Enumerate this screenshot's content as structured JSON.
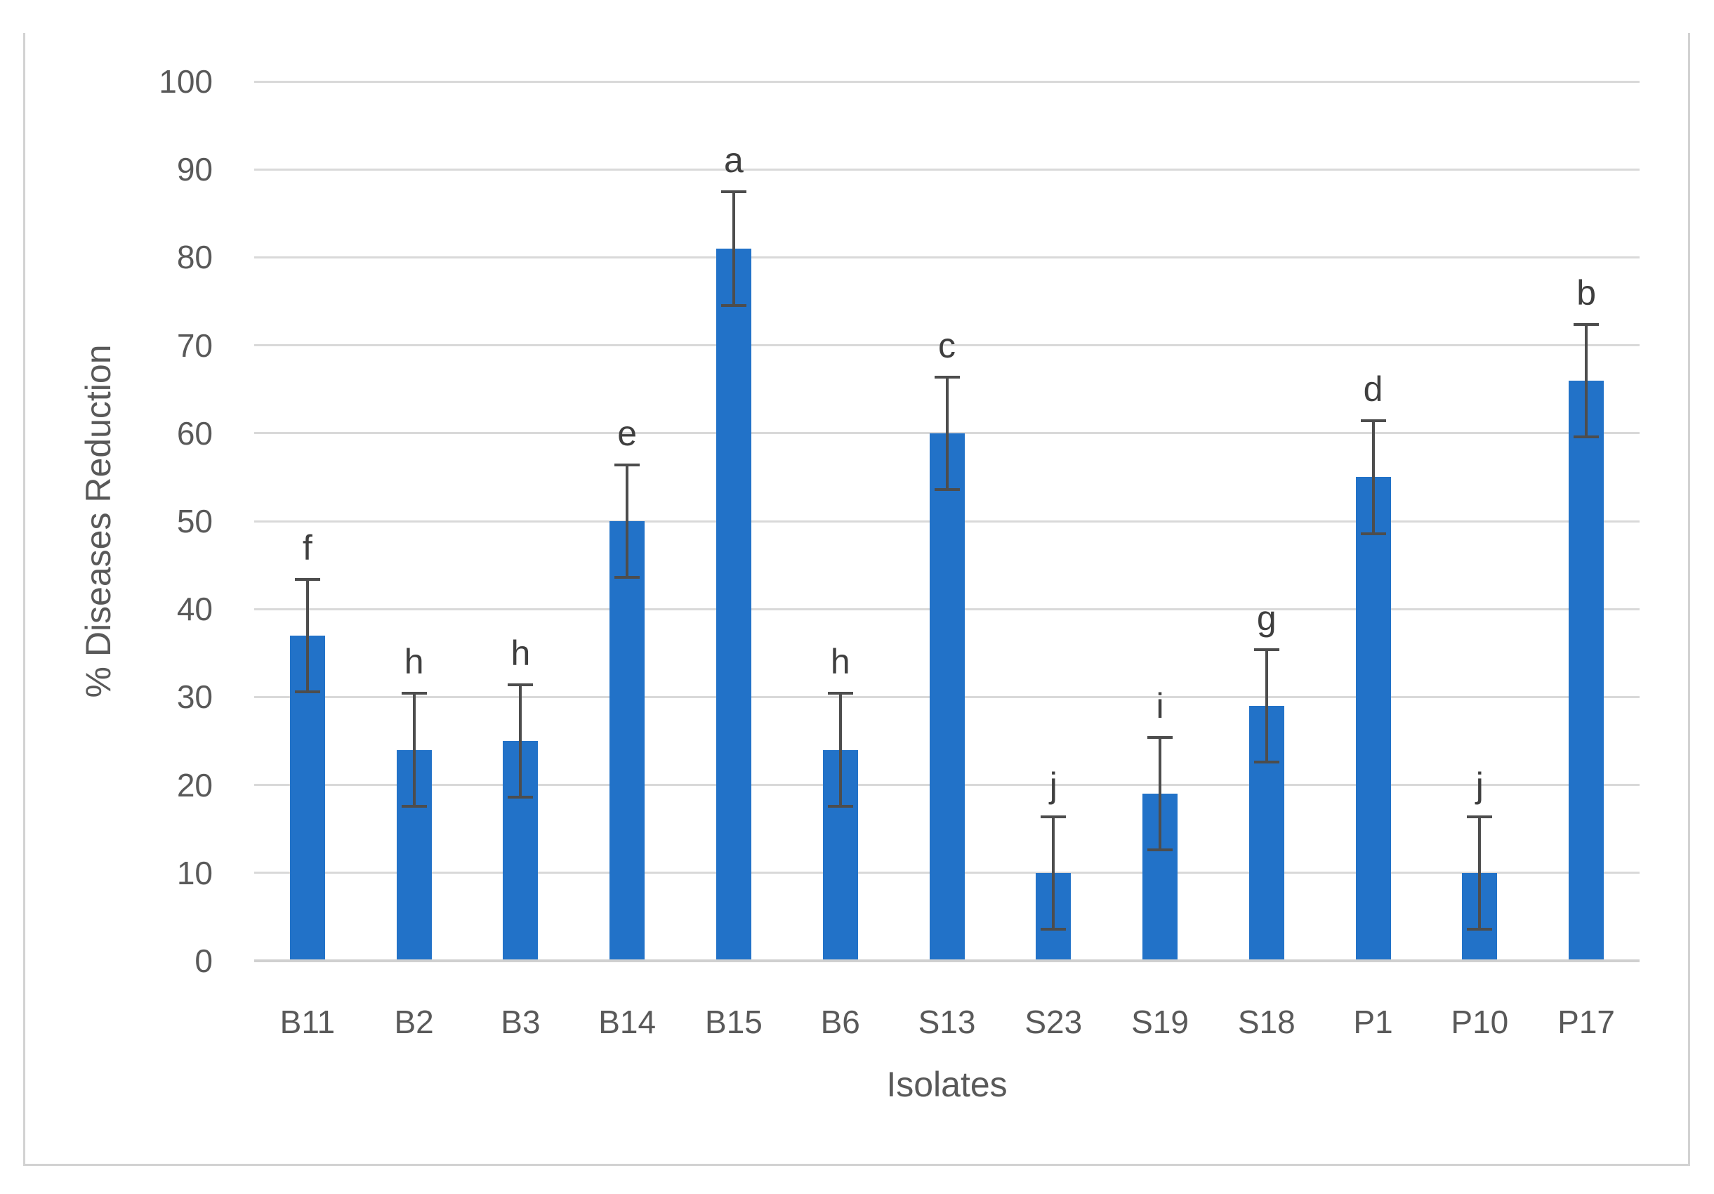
{
  "figure": {
    "background_color": "#ffffff",
    "border_color": "#d2d2d2"
  },
  "chart_data": {
    "type": "bar",
    "title": "",
    "xlabel": "Isolates",
    "ylabel": "% Diseases Reduction",
    "ylim": [
      0,
      100
    ],
    "yticks": [
      0,
      10,
      20,
      30,
      40,
      50,
      60,
      70,
      80,
      90,
      100
    ],
    "grid": true,
    "legend": "none",
    "bar_color": "#2272c8",
    "error_bar_color": "#4d4d4d",
    "tick_label_color": "#595959",
    "sig_letter_color": "#3f3f3f",
    "categories": [
      "B11",
      "B2",
      "B3",
      "B14",
      "B15",
      "B6",
      "S13",
      "S23",
      "S19",
      "S18",
      "P1",
      "P10",
      "P17"
    ],
    "values": [
      37,
      24,
      25,
      50,
      81,
      24,
      60,
      10,
      19,
      29,
      55,
      10,
      66
    ],
    "errors": [
      6.4,
      6.4,
      6.4,
      6.4,
      6.5,
      6.4,
      6.4,
      6.4,
      6.4,
      6.4,
      6.4,
      6.4,
      6.4
    ],
    "sig_letters": [
      "f",
      "h",
      "h",
      "e",
      "a",
      "h",
      "c",
      "j",
      "i",
      "g",
      "d",
      "j",
      "b"
    ]
  }
}
